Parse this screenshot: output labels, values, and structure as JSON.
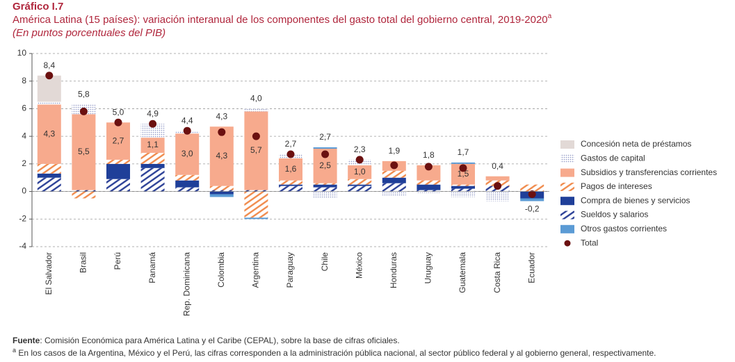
{
  "chart_data": {
    "type": "bar",
    "stacked": true,
    "label": "Gráfico I.7",
    "title": "América Latina (15 países): variación interanual de los componentes del gasto total del gobierno central, 2019-2020",
    "title_sup": "a",
    "subtitle": "(En puntos porcentuales del PIB)",
    "categories": [
      "El Salvador",
      "Brasil",
      "Perú",
      "Panamá",
      "Rep. Dominicana",
      "Colombia",
      "Argentina",
      "Paraguay",
      "Chile",
      "México",
      "Honduras",
      "Uruguay",
      "Guatemala",
      "Costa Rica",
      "Ecuador"
    ],
    "series": [
      {
        "name": "Concesión neta de préstamos",
        "color": "#e2d9d6",
        "pattern": "solid",
        "values": [
          1.9,
          0,
          0,
          0,
          0,
          0,
          0,
          0,
          0,
          0,
          0,
          0,
          0,
          0,
          0
        ]
      },
      {
        "name": "Gastos de capital",
        "color": "#8f96c4",
        "pattern": "dots",
        "values": [
          0.2,
          0.7,
          0,
          1.0,
          0.2,
          0,
          0.2,
          0.3,
          -0.5,
          0.4,
          -0.3,
          -0.1,
          -0.4,
          -0.7,
          0
        ]
      },
      {
        "name": "Subsidios y transferencias corrientes",
        "color": "#f7aa8d",
        "pattern": "solid",
        "values": [
          4.3,
          5.5,
          2.7,
          1.1,
          3.0,
          4.3,
          5.7,
          1.6,
          2.5,
          1.0,
          0.7,
          1.1,
          1.5,
          0.3,
          0
        ],
        "value_labels": [
          "4,3",
          "5,5",
          "2,7",
          "1,1",
          "3,0",
          "4,3",
          "5,7",
          "1,6",
          "2,5",
          "1,0",
          null,
          null,
          "1,5",
          null,
          null
        ]
      },
      {
        "name": "Pagos de intereses",
        "color": "#f08a4b",
        "pattern": "hatch",
        "values": [
          0.7,
          -0.5,
          0.3,
          0.8,
          0.4,
          0.3,
          -1.9,
          0.3,
          0.1,
          0.4,
          0.5,
          0.3,
          0.1,
          0.4,
          0.5
        ]
      },
      {
        "name": "Compra de bienes y servicios",
        "color": "#1f3f99",
        "pattern": "solid",
        "values": [
          0.3,
          0,
          1.1,
          0.3,
          0.5,
          -0.2,
          0,
          0.1,
          0.2,
          0.1,
          0.4,
          0.4,
          0.2,
          0,
          -0.5
        ]
      },
      {
        "name": "Sueldos y salarios",
        "color": "#2a3f96",
        "pattern": "hatch",
        "values": [
          1.0,
          0.1,
          0.9,
          1.7,
          0.3,
          0.1,
          0.1,
          0.4,
          0.3,
          0.4,
          0.6,
          0.1,
          0.2,
          0.4,
          0
        ]
      },
      {
        "name": "Otros gastos corrientes",
        "color": "#5b9bd5",
        "pattern": "solid",
        "values": [
          0,
          0,
          0,
          0,
          0,
          -0.2,
          -0.1,
          0,
          0.1,
          0,
          0,
          0,
          0.1,
          0,
          -0.2
        ]
      },
      {
        "name": "Total",
        "color": "#6b1010",
        "type": "dot",
        "values": [
          8.4,
          5.8,
          5.0,
          4.9,
          4.4,
          4.3,
          4.0,
          2.7,
          2.7,
          2.3,
          1.9,
          1.8,
          1.7,
          0.4,
          -0.2
        ],
        "value_labels": [
          "8,4",
          "5,8",
          "5,0",
          "4,9",
          "4,4",
          "4,3",
          "4,0",
          "2,7",
          "2,7",
          "2,3",
          "1,9",
          "1,8",
          "1,7",
          "0,4",
          "-0,2"
        ]
      }
    ],
    "ylim": [
      -4,
      10
    ],
    "yticks": [
      -4,
      -2,
      0,
      2,
      4,
      6,
      8,
      10
    ],
    "grid": true,
    "source_label": "Fuente",
    "source": ": Comisión Económica para América Latina y el Caribe (CEPAL), sobre la base de cifras oficiales.",
    "note_mark": "a",
    "note": " En los casos de la Argentina, México y el Perú, las cifras corresponden a la administración pública nacional, al sector público federal y al gobierno general, respectivamente."
  }
}
